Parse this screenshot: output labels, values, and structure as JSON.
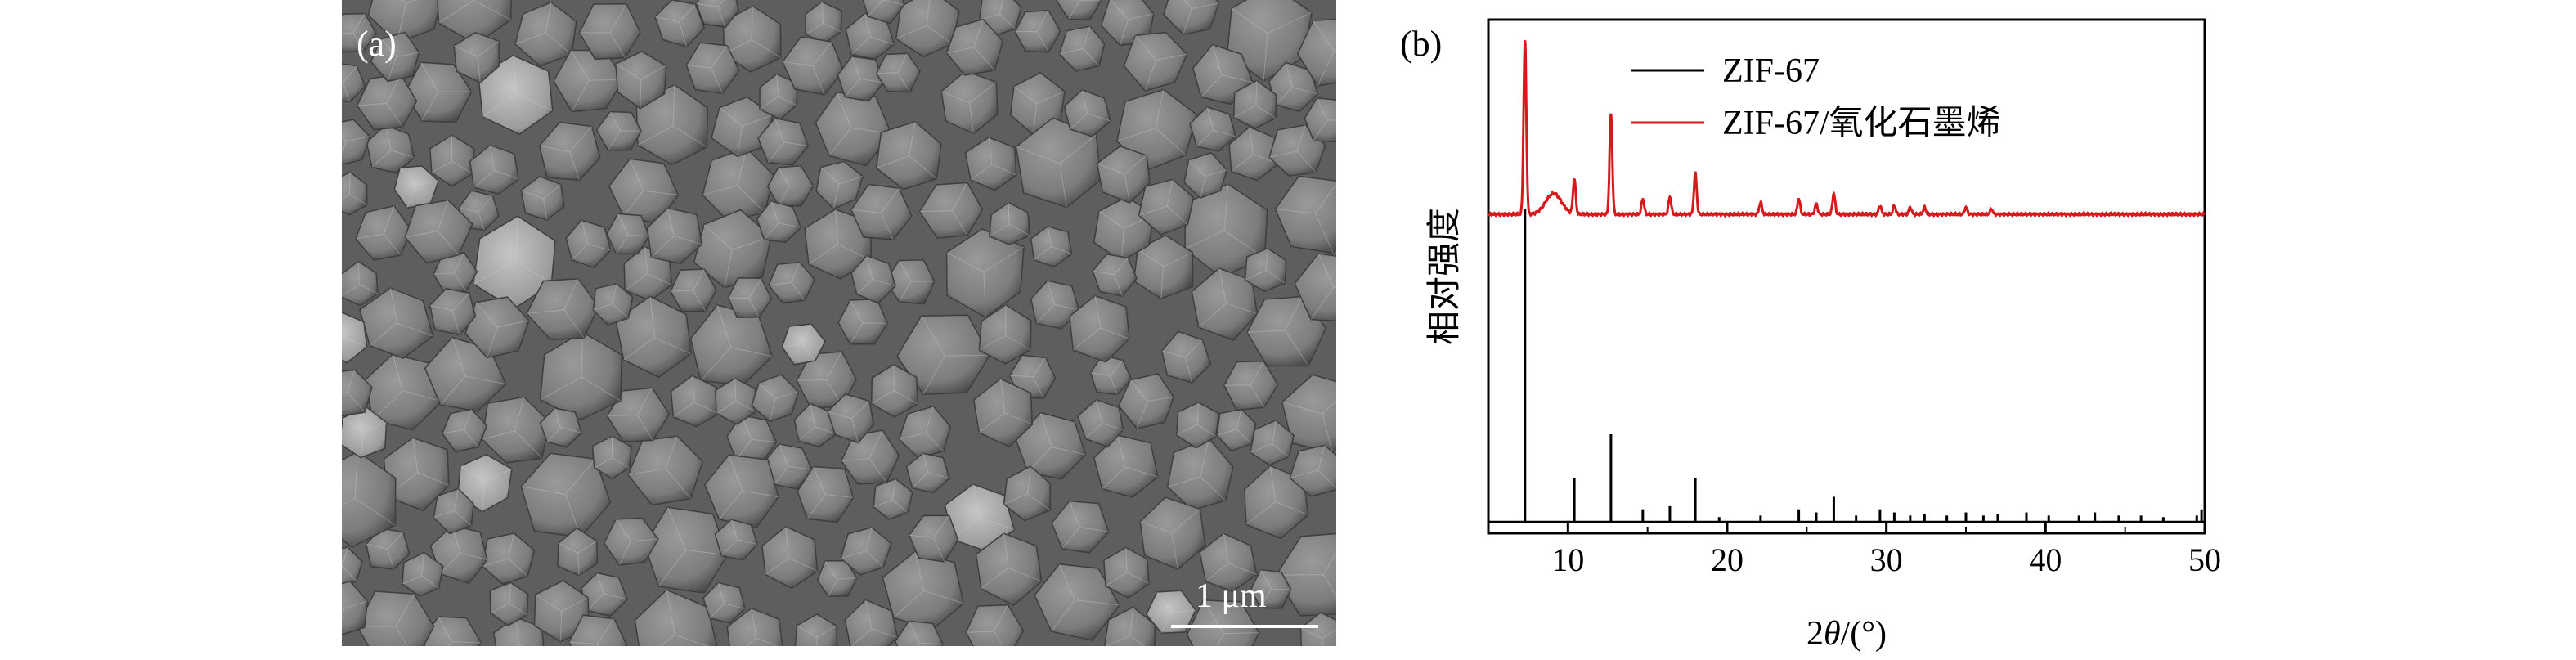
{
  "panel_a": {
    "label": "(a)",
    "scale_bar_text": "1 μm",
    "image_description_icon": "sem-micrograph"
  },
  "panel_b": {
    "label": "(b)"
  },
  "chart_data": {
    "type": "line",
    "title": "",
    "xlabel": "2θ/(°)",
    "xlabel_prefix": "2",
    "xlabel_theta": "θ",
    "xlabel_suffix": "/(°)",
    "ylabel": "相对强度",
    "xlim": [
      5,
      50
    ],
    "xticks": [
      10,
      20,
      30,
      40,
      50
    ],
    "yticks_shown": false,
    "legend_position": "top-right",
    "series": [
      {
        "name": "ZIF-67",
        "color": "#000000",
        "style": "stick",
        "x": [
          7.3,
          10.4,
          12.7,
          14.7,
          16.4,
          18.0,
          19.5,
          22.1,
          24.5,
          25.6,
          26.7,
          28.1,
          29.6,
          30.5,
          31.5,
          32.4,
          33.8,
          35.0,
          36.1,
          37.0,
          38.8,
          40.2,
          42.1,
          43.1,
          44.6,
          46.0,
          47.4,
          49.5,
          49.8
        ],
        "values": [
          100,
          14,
          28,
          4,
          5,
          14,
          1.5,
          2,
          4,
          3,
          8,
          2,
          4,
          3,
          2,
          2.5,
          2,
          3,
          2,
          2.5,
          3,
          2,
          2,
          3,
          2,
          2,
          1.5,
          2,
          4
        ]
      },
      {
        "name": "ZIF-67/氧化石墨烯",
        "color": "#d7191c",
        "style": "line",
        "peaks_x": [
          7.3,
          9.1,
          10.4,
          12.7,
          14.7,
          16.4,
          18.0,
          22.1,
          24.5,
          25.6,
          26.7,
          29.6,
          30.5,
          31.5,
          32.4,
          35.0,
          36.6
        ],
        "peaks_values": [
          100,
          12,
          20,
          58,
          9,
          10,
          24,
          7,
          9,
          6,
          12,
          5,
          5,
          4,
          4,
          4,
          3
        ],
        "baseline": 0
      }
    ]
  }
}
